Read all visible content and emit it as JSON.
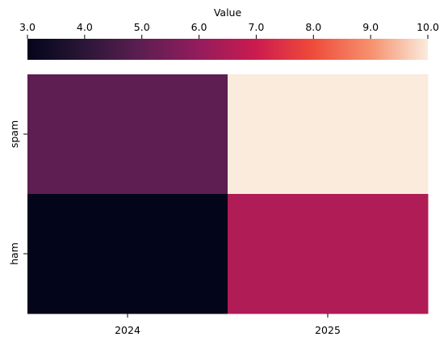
{
  "chart_data": {
    "type": "heatmap",
    "x_categories": [
      "2024",
      "2025"
    ],
    "y_categories": [
      "spam",
      "ham"
    ],
    "values": [
      [
        5.0,
        10.0
      ],
      [
        3.0,
        6.5
      ]
    ],
    "colorbar": {
      "label": "Value",
      "range": [
        3.0,
        10.0
      ],
      "ticks": [
        "3.0",
        "4.0",
        "5.0",
        "6.0",
        "7.0",
        "8.0",
        "9.0",
        "10.0"
      ],
      "position": "top",
      "colormap": "rocket"
    },
    "title": "",
    "xlabel": "",
    "ylabel": ""
  }
}
